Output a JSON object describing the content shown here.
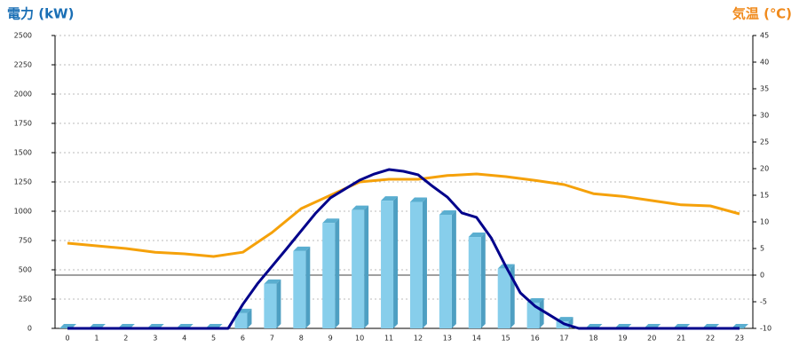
{
  "chart_data": {
    "type": "bar",
    "title": "電力 (kW)",
    "y2_title": "気温 (℃)",
    "categories": [
      "0",
      "1",
      "2",
      "3",
      "4",
      "5",
      "6",
      "7",
      "8",
      "9",
      "10",
      "11",
      "12",
      "13",
      "14",
      "15",
      "16",
      "17",
      "18",
      "19",
      "20",
      "21",
      "22",
      "23"
    ],
    "ylim": [
      0,
      2500
    ],
    "yticks": [
      0,
      250,
      500,
      750,
      1000,
      1250,
      1500,
      1750,
      2000,
      2250,
      2500
    ],
    "y2lim": [
      -10,
      45
    ],
    "y2ticks": [
      -10,
      -5,
      0,
      5,
      10,
      15,
      20,
      25,
      30,
      35,
      40,
      45
    ],
    "grid": true,
    "series": [
      {
        "type": "bar",
        "color": "#87ceeb",
        "values": [
          0,
          0,
          0,
          0,
          0,
          0,
          130,
          380,
          660,
          900,
          1010,
          1090,
          1080,
          970,
          780,
          510,
          220,
          60,
          0,
          0,
          0,
          0,
          0,
          0
        ]
      },
      {
        "type": "line",
        "color": "#00008b",
        "x": [
          0,
          1,
          2,
          3,
          4,
          5,
          5.5,
          6,
          6.5,
          7,
          7.5,
          8,
          8.5,
          9,
          9.5,
          10,
          10.5,
          11,
          11.5,
          12,
          12.5,
          13,
          13.5,
          14,
          14.5,
          15,
          15.5,
          16,
          16.5,
          17,
          17.5,
          18,
          19,
          20,
          21,
          22,
          23
        ],
        "values": [
          0,
          0,
          0,
          0,
          0,
          0,
          0,
          205,
          380,
          530,
          680,
          833,
          985,
          1114,
          1190,
          1265,
          1318,
          1356,
          1341,
          1311,
          1212,
          1121,
          985,
          947,
          773,
          530,
          303,
          190,
          114,
          38,
          0,
          0,
          0,
          0,
          0,
          0,
          0
        ]
      },
      {
        "type": "line",
        "axis": "y2",
        "color": "#f5a10a",
        "values": [
          6.0,
          5.5,
          5.0,
          4.3,
          4.0,
          3.5,
          4.3,
          8,
          12.5,
          15,
          17.5,
          18,
          18,
          18.7,
          19,
          18.5,
          17.8,
          17,
          15.3,
          14.8,
          14,
          13.2,
          13,
          11.5
        ]
      }
    ]
  }
}
